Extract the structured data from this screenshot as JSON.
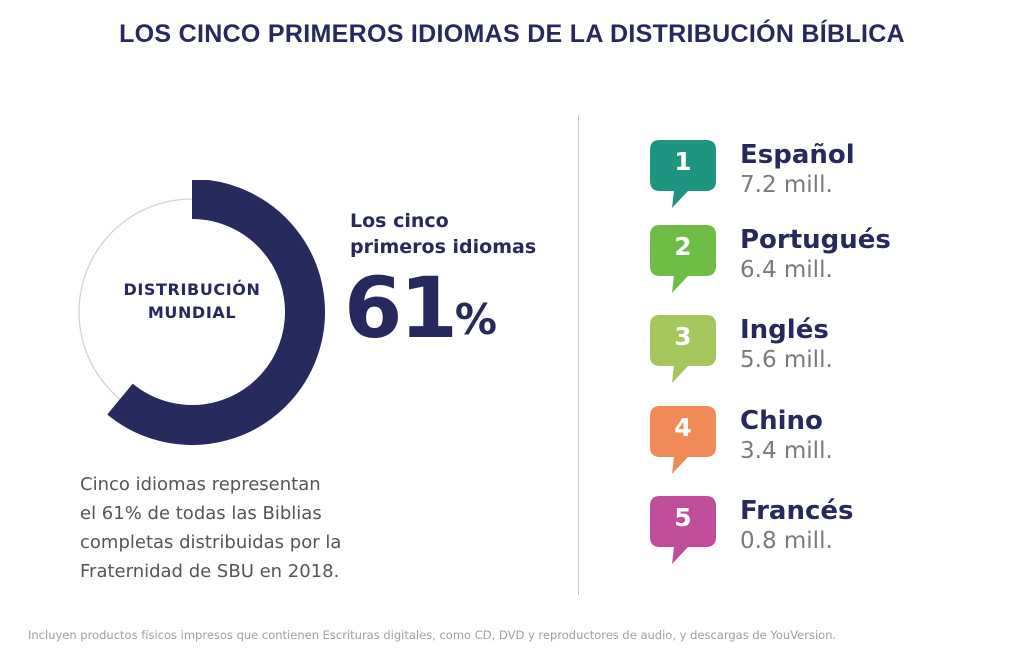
{
  "title": "LOS CINCO PRIMEROS IDIOMAS DE LA DISTRIBUCIÓN BÍBLICA",
  "donut": {
    "center_label_line1": "DISTRIBUCIÓN",
    "center_label_line2": "MUNDIAL",
    "fill_color": "#262a5d",
    "track_color": "#d0d0d0"
  },
  "share": {
    "caption_line1": "Los cinco",
    "caption_line2": "primeros idiomas",
    "value": "61",
    "unit": "%"
  },
  "description": [
    "Cinco idiomas representan",
    "el 61% de todas las Biblias",
    "completas distribuidas por la",
    "Fraternidad de SBU en 2018."
  ],
  "languages": [
    {
      "rank": "1",
      "name": "Español",
      "value_text": "7.2 mill.",
      "color": "#1e9581"
    },
    {
      "rank": "2",
      "name": "Portugués",
      "value_text": "6.4 mill.",
      "color": "#6dbc45"
    },
    {
      "rank": "3",
      "name": "Inglés",
      "value_text": "5.6 mill.",
      "color": "#a5c65c"
    },
    {
      "rank": "4",
      "name": "Chino",
      "value_text": "3.4 mill.",
      "color": "#f08a56"
    },
    {
      "rank": "5",
      "name": "Francés",
      "value_text": "0.8 mill.",
      "color": "#c04d9b"
    }
  ],
  "footnote": "Incluyen productos físicos impresos que contienen Escrituras digitales, como CD, DVD y reproductores de audio, y descargas de YouVersion.",
  "chart_data": {
    "type": "pie",
    "slices": [
      {
        "value": 61
      },
      {
        "value": 39
      }
    ],
    "center_label": "DISTRIBUCIÓN MUNDIAL"
  }
}
